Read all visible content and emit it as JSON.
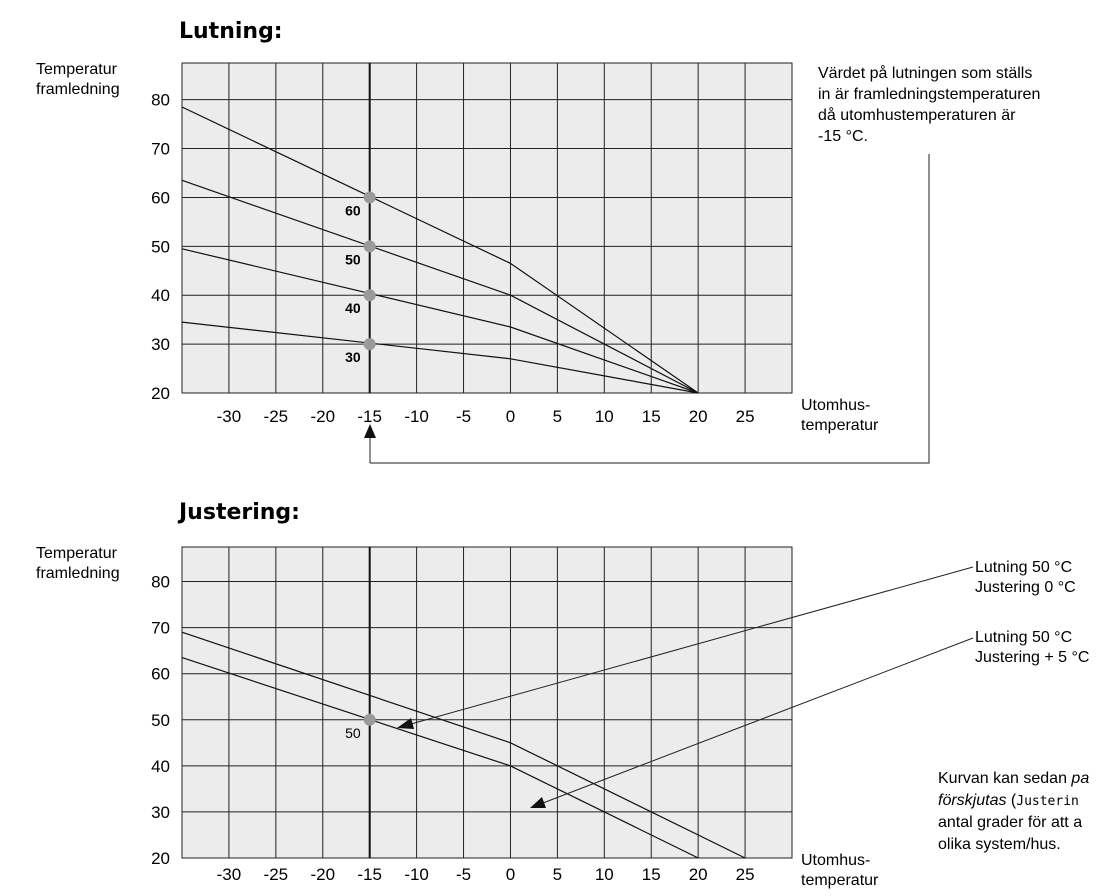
{
  "chart_data": [
    {
      "type": "line",
      "title": "Lutning:",
      "ylabel": [
        "Temperatur",
        "framledning"
      ],
      "xlabel": [
        "Utomhus-",
        "temperatur"
      ],
      "xlim": [
        -35,
        30
      ],
      "ylim": [
        20,
        87.5
      ],
      "xticks": [
        -30,
        -25,
        -20,
        -15,
        -10,
        -5,
        0,
        5,
        10,
        15,
        20,
        25
      ],
      "yticks": [
        20,
        30,
        40,
        50,
        60,
        70,
        80
      ],
      "marker_x": -15,
      "series": [
        {
          "name": "60",
          "x": [
            -35,
            0,
            20
          ],
          "y": [
            78.5,
            46.5,
            20
          ]
        },
        {
          "name": "50",
          "x": [
            -35,
            0,
            20
          ],
          "y": [
            63.5,
            40,
            20
          ]
        },
        {
          "name": "40",
          "x": [
            -35,
            0,
            20
          ],
          "y": [
            49.5,
            33.5,
            20
          ]
        },
        {
          "name": "30",
          "x": [
            -35,
            0,
            20
          ],
          "y": [
            34.5,
            27,
            20
          ]
        }
      ],
      "points": [
        {
          "x": -15,
          "y": 60,
          "label": "60"
        },
        {
          "x": -15,
          "y": 50,
          "label": "50"
        },
        {
          "x": -15,
          "y": 40,
          "label": "40"
        },
        {
          "x": -15,
          "y": 30,
          "label": "30"
        }
      ]
    },
    {
      "type": "line",
      "title": "Justering:",
      "ylabel": [
        "Temperatur",
        "framledning"
      ],
      "xlabel": [
        "Utomhus-",
        "temperatur"
      ],
      "xlim": [
        -35,
        30
      ],
      "ylim": [
        20,
        87.5
      ],
      "xticks": [
        -30,
        -25,
        -20,
        -15,
        -10,
        -5,
        0,
        5,
        10,
        15,
        20,
        25
      ],
      "yticks": [
        20,
        30,
        40,
        50,
        60,
        70,
        80
      ],
      "marker_x": -15,
      "series": [
        {
          "name": "Lutning 50 °C / Justering 0 °C",
          "x": [
            -35,
            0,
            20
          ],
          "y": [
            63.5,
            40,
            20
          ]
        },
        {
          "name": "Lutning 50 °C / Justering + 5 °C",
          "x": [
            -35,
            0,
            25
          ],
          "y": [
            69,
            45,
            20
          ]
        }
      ],
      "points": [
        {
          "x": -15,
          "y": 50,
          "label": "50"
        }
      ]
    }
  ],
  "notes": {
    "slope_note": [
      "Värdet på lutningen som ställs",
      "in är framledningstemperaturen",
      "då utomhustemperaturen är",
      "-15 °C."
    ],
    "callout_1": [
      "Lutning 50 °C",
      "Justering 0 °C"
    ],
    "callout_2": [
      "Lutning 50 °C",
      "Justering + 5 °C"
    ],
    "adjust_note": {
      "line1_a": "Kurvan kan sedan ",
      "line1_b": "pa",
      "line2_a": "förskjutas",
      "line2_b": " (",
      "line2_c": "Justerin",
      "line3": "antal grader för att a",
      "line4": "olika system/hus."
    }
  }
}
